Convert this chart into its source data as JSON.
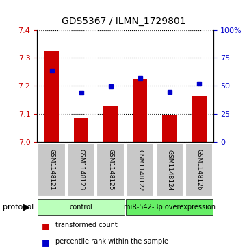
{
  "title": "GDS5367 / ILMN_1729801",
  "samples": [
    "GSM1148121",
    "GSM1148123",
    "GSM1148125",
    "GSM1148122",
    "GSM1148124",
    "GSM1148126"
  ],
  "bar_values": [
    7.325,
    7.085,
    7.13,
    7.225,
    7.095,
    7.165
  ],
  "blue_values": [
    7.255,
    7.175,
    7.198,
    7.228,
    7.178,
    7.208
  ],
  "bar_color": "#cc0000",
  "blue_color": "#0000cc",
  "ylim_left": [
    7.0,
    7.4
  ],
  "ylim_right": [
    0,
    100
  ],
  "yticks_left": [
    7.0,
    7.1,
    7.2,
    7.3,
    7.4
  ],
  "yticks_right": [
    0,
    25,
    50,
    75,
    100
  ],
  "groups": [
    {
      "label": "control",
      "samples": [
        0,
        1,
        2
      ],
      "color": "#bbffbb"
    },
    {
      "label": "miR-542-3p overexpression",
      "samples": [
        3,
        4,
        5
      ],
      "color": "#66ee66"
    }
  ],
  "protocol_label": "protocol",
  "legend_items": [
    {
      "label": "transformed count",
      "color": "#cc0000"
    },
    {
      "label": "percentile rank within the sample",
      "color": "#0000cc"
    }
  ],
  "bar_width": 0.5,
  "background_sample": "#c8c8c8",
  "left_tick_color": "#cc0000",
  "right_tick_color": "#0000cc"
}
